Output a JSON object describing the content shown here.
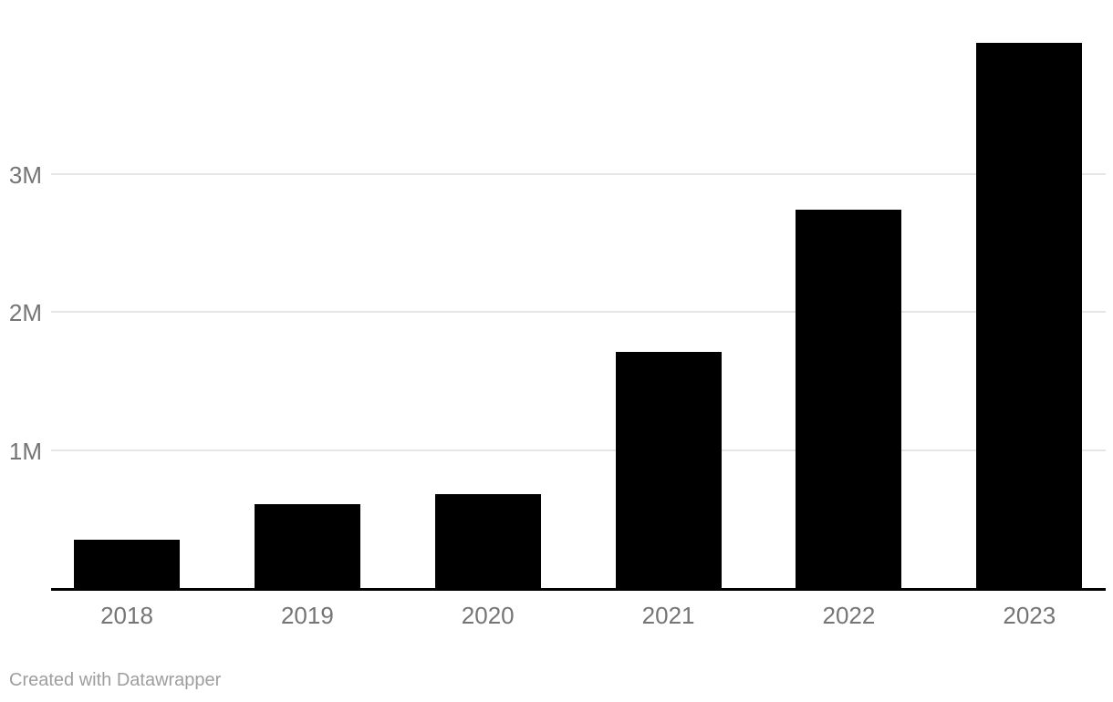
{
  "chart_data": {
    "type": "bar",
    "categories": [
      "2018",
      "2019",
      "2020",
      "2021",
      "2022",
      "2023"
    ],
    "values": [
      0.35,
      0.61,
      0.68,
      1.71,
      2.74,
      3.95
    ],
    "value_unit": "millions",
    "title": "",
    "xlabel": "",
    "ylabel": "",
    "ylim": [
      0,
      4.26
    ],
    "yticks": [
      {
        "value": 1,
        "label": "1M"
      },
      {
        "value": 2,
        "label": "2M"
      },
      {
        "value": 3,
        "label": "3M"
      }
    ],
    "grid": true,
    "legend": "none",
    "bar_color": "#000000"
  },
  "footer": {
    "attribution": "Created with Datawrapper"
  },
  "colors": {
    "background": "#ffffff",
    "bar": "#000000",
    "axis_line": "#000000",
    "gridline": "#e6e6e6",
    "tick_label": "#757575",
    "footer_text": "#9e9e9e"
  }
}
